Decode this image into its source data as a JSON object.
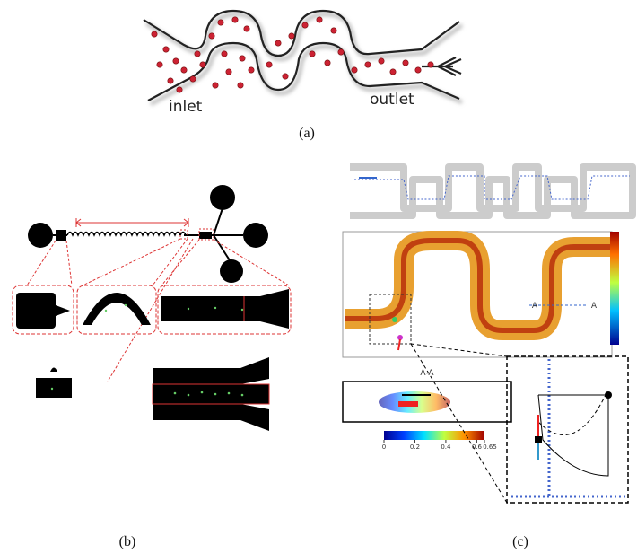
{
  "panel_a": {
    "inlet_label": "inlet",
    "outlet_label": "outlet",
    "caption": "(a)"
  },
  "panel_b": {
    "caption": "(b)"
  },
  "panel_c": {
    "section_labels": [
      "A",
      "A"
    ],
    "inset_title": "A-A",
    "colorbar_ticks": [
      0,
      0.2,
      0.4,
      0.6,
      0.65
    ],
    "caption": "(c)"
  }
}
